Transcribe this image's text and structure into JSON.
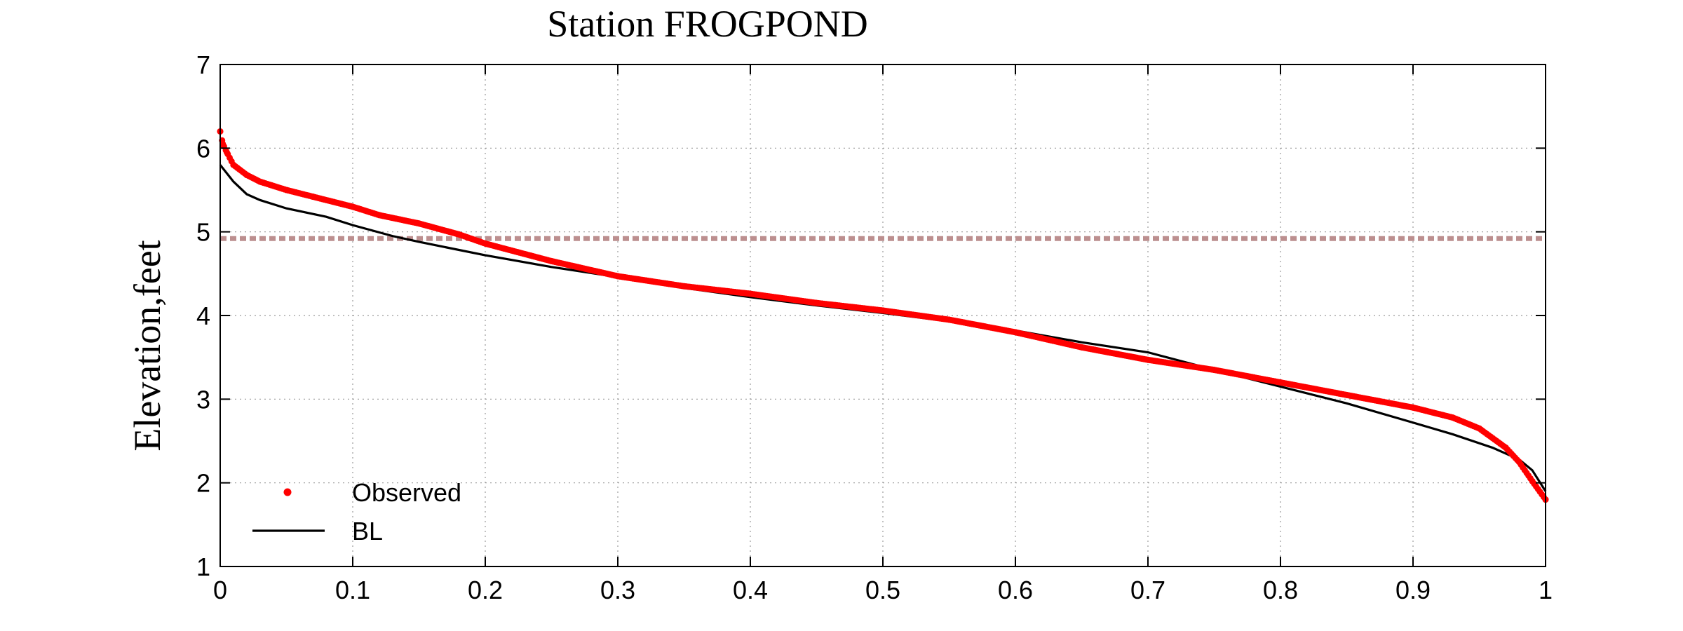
{
  "chart_data": {
    "type": "line",
    "title": "Station FROGPOND",
    "xlabel": "",
    "ylabel": "Elevation,feet",
    "xlim": [
      0,
      1
    ],
    "ylim": [
      1,
      7
    ],
    "x_ticks": [
      "0",
      "0.1",
      "0.2",
      "0.3",
      "0.4",
      "0.5",
      "0.6",
      "0.7",
      "0.8",
      "0.9",
      "1"
    ],
    "y_ticks": [
      "1",
      "2",
      "3",
      "4",
      "5",
      "6",
      "7"
    ],
    "grid": true,
    "legend_position": "bottom-left",
    "reference_line": {
      "y": 4.92,
      "color": "#bc8f8f"
    },
    "series": [
      {
        "name": "Observed",
        "style": "markers",
        "color": "#ff0000",
        "points": [
          [
            0.0,
            6.2
          ],
          [
            0.002,
            6.05
          ],
          [
            0.005,
            5.95
          ],
          [
            0.01,
            5.8
          ],
          [
            0.02,
            5.68
          ],
          [
            0.03,
            5.6
          ],
          [
            0.05,
            5.5
          ],
          [
            0.07,
            5.42
          ],
          [
            0.1,
            5.3
          ],
          [
            0.12,
            5.2
          ],
          [
            0.15,
            5.1
          ],
          [
            0.18,
            4.97
          ],
          [
            0.2,
            4.86
          ],
          [
            0.25,
            4.65
          ],
          [
            0.3,
            4.47
          ],
          [
            0.35,
            4.35
          ],
          [
            0.4,
            4.26
          ],
          [
            0.45,
            4.15
          ],
          [
            0.5,
            4.06
          ],
          [
            0.55,
            3.95
          ],
          [
            0.6,
            3.8
          ],
          [
            0.65,
            3.62
          ],
          [
            0.7,
            3.47
          ],
          [
            0.75,
            3.35
          ],
          [
            0.8,
            3.2
          ],
          [
            0.85,
            3.05
          ],
          [
            0.9,
            2.9
          ],
          [
            0.93,
            2.78
          ],
          [
            0.95,
            2.65
          ],
          [
            0.97,
            2.42
          ],
          [
            0.98,
            2.25
          ],
          [
            0.99,
            2.02
          ],
          [
            1.0,
            1.8
          ]
        ]
      },
      {
        "name": "BL",
        "style": "line",
        "color": "#000000",
        "points": [
          [
            0.0,
            5.8
          ],
          [
            0.005,
            5.7
          ],
          [
            0.01,
            5.6
          ],
          [
            0.02,
            5.45
          ],
          [
            0.03,
            5.38
          ],
          [
            0.05,
            5.28
          ],
          [
            0.08,
            5.18
          ],
          [
            0.1,
            5.08
          ],
          [
            0.13,
            4.95
          ],
          [
            0.15,
            4.88
          ],
          [
            0.2,
            4.72
          ],
          [
            0.25,
            4.58
          ],
          [
            0.3,
            4.46
          ],
          [
            0.35,
            4.33
          ],
          [
            0.4,
            4.22
          ],
          [
            0.45,
            4.12
          ],
          [
            0.5,
            4.03
          ],
          [
            0.55,
            3.93
          ],
          [
            0.6,
            3.82
          ],
          [
            0.65,
            3.68
          ],
          [
            0.7,
            3.56
          ],
          [
            0.75,
            3.35
          ],
          [
            0.8,
            3.15
          ],
          [
            0.85,
            2.95
          ],
          [
            0.9,
            2.72
          ],
          [
            0.93,
            2.58
          ],
          [
            0.96,
            2.42
          ],
          [
            0.98,
            2.28
          ],
          [
            0.99,
            2.15
          ],
          [
            1.0,
            1.9
          ]
        ]
      }
    ]
  }
}
